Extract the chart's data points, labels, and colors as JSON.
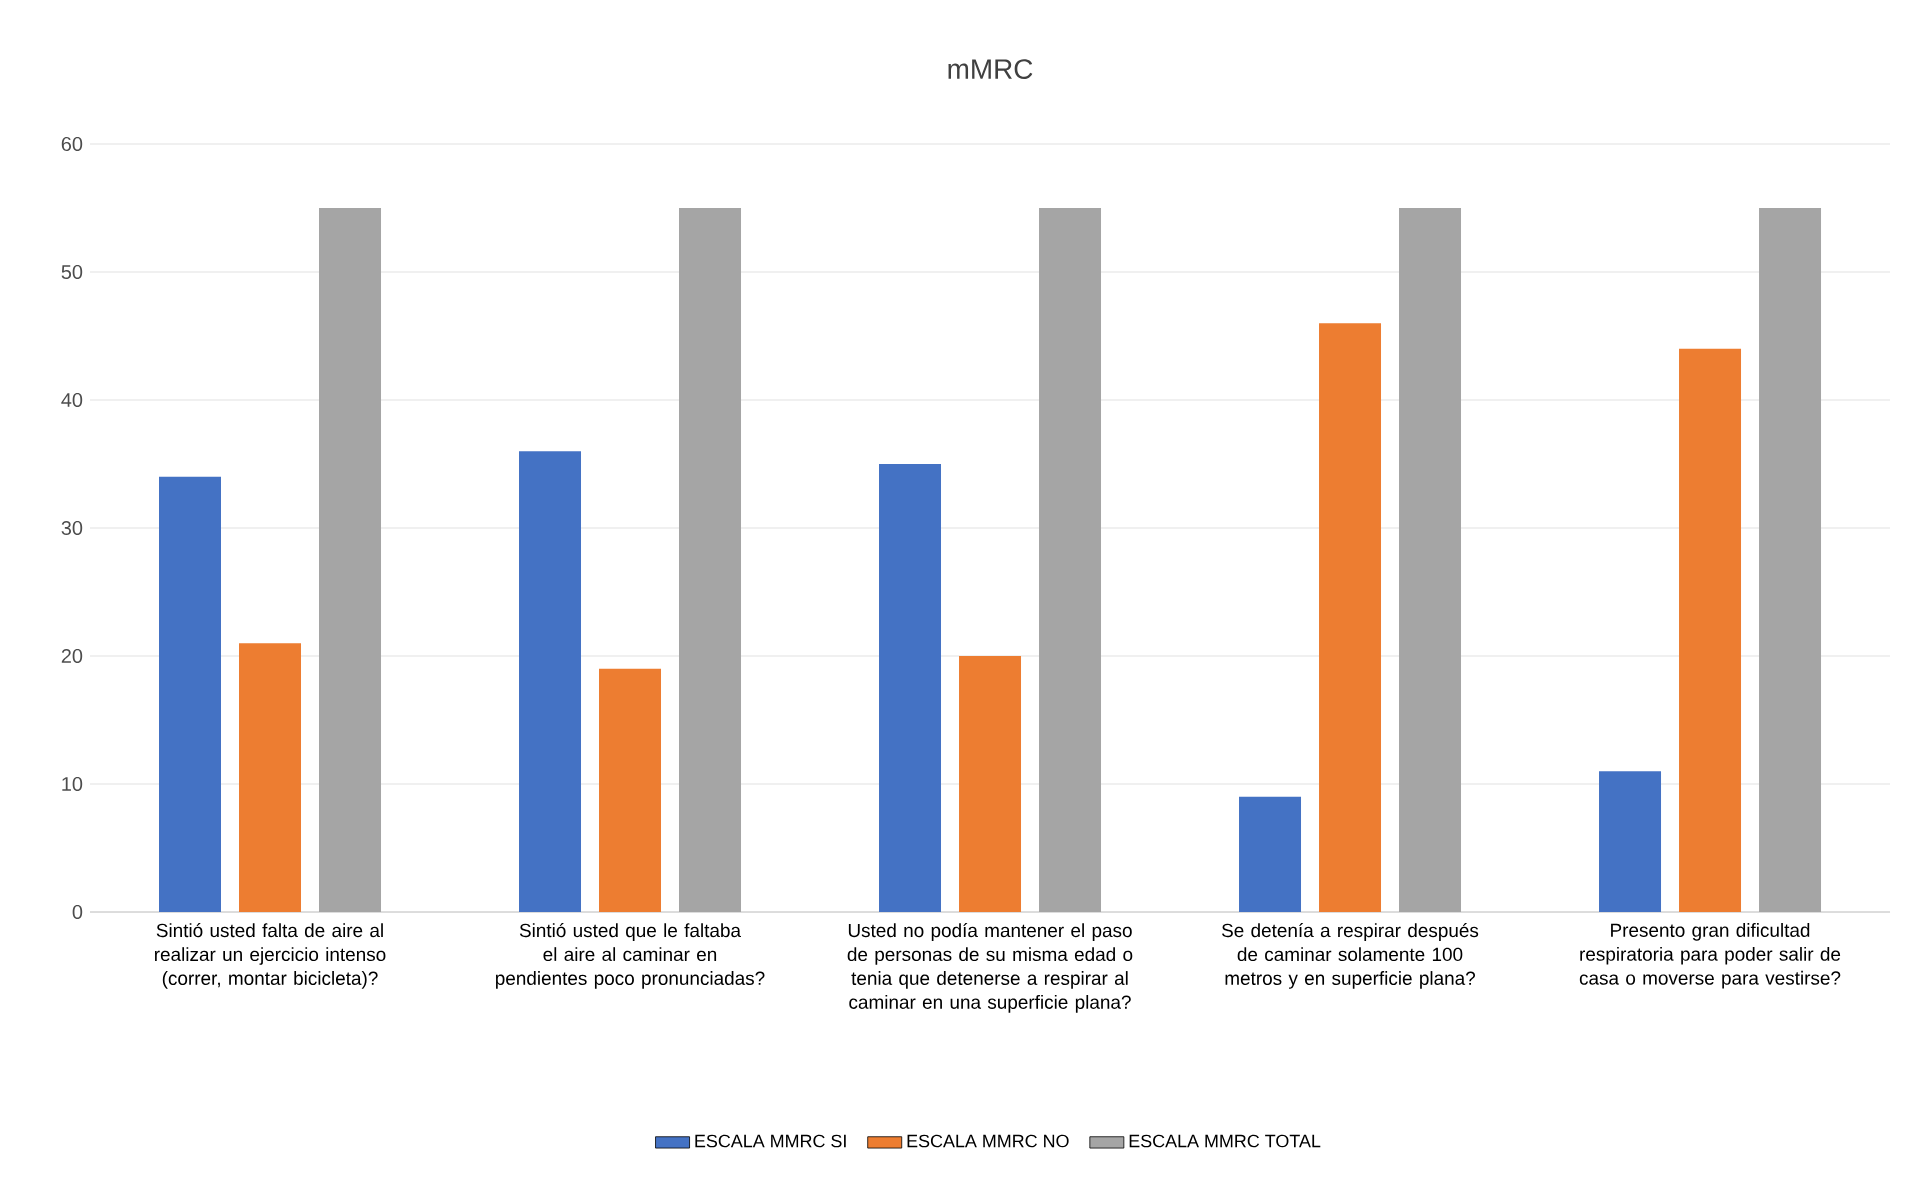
{
  "chart_data": {
    "type": "bar",
    "title": "mMRC",
    "categories": [
      "Sintió usted falta de aire al realizar un ejercicio intenso (correr, montar bicicleta)?",
      "Sintió usted que le faltaba el aire al caminar en pendientes poco pronunciadas?",
      "Usted no podía mantener el paso de personas de su misma edad o tenia que detenerse a respirar al caminar en una superficie plana?",
      "Se detenía a respirar después de caminar solamente 100 metros y en superficie plana?",
      "Presento gran dificultad respiratoria para poder salir de casa o moverse para vestirse?"
    ],
    "series": [
      {
        "name": "ESCALA MMRC SI",
        "color": "#4472c4",
        "values": [
          34,
          36,
          35,
          9,
          11
        ]
      },
      {
        "name": "ESCALA MMRC NO",
        "color": "#ed7d31",
        "values": [
          21,
          19,
          20,
          46,
          44
        ]
      },
      {
        "name": "ESCALA MMRC TOTAL",
        "color": "#a5a5a5",
        "values": [
          55,
          55,
          55,
          55,
          55
        ]
      }
    ],
    "ylim": [
      0,
      60
    ],
    "yticks": [
      0,
      10,
      20,
      30,
      40,
      50,
      60
    ],
    "grid": "y",
    "legend": "bottom"
  }
}
